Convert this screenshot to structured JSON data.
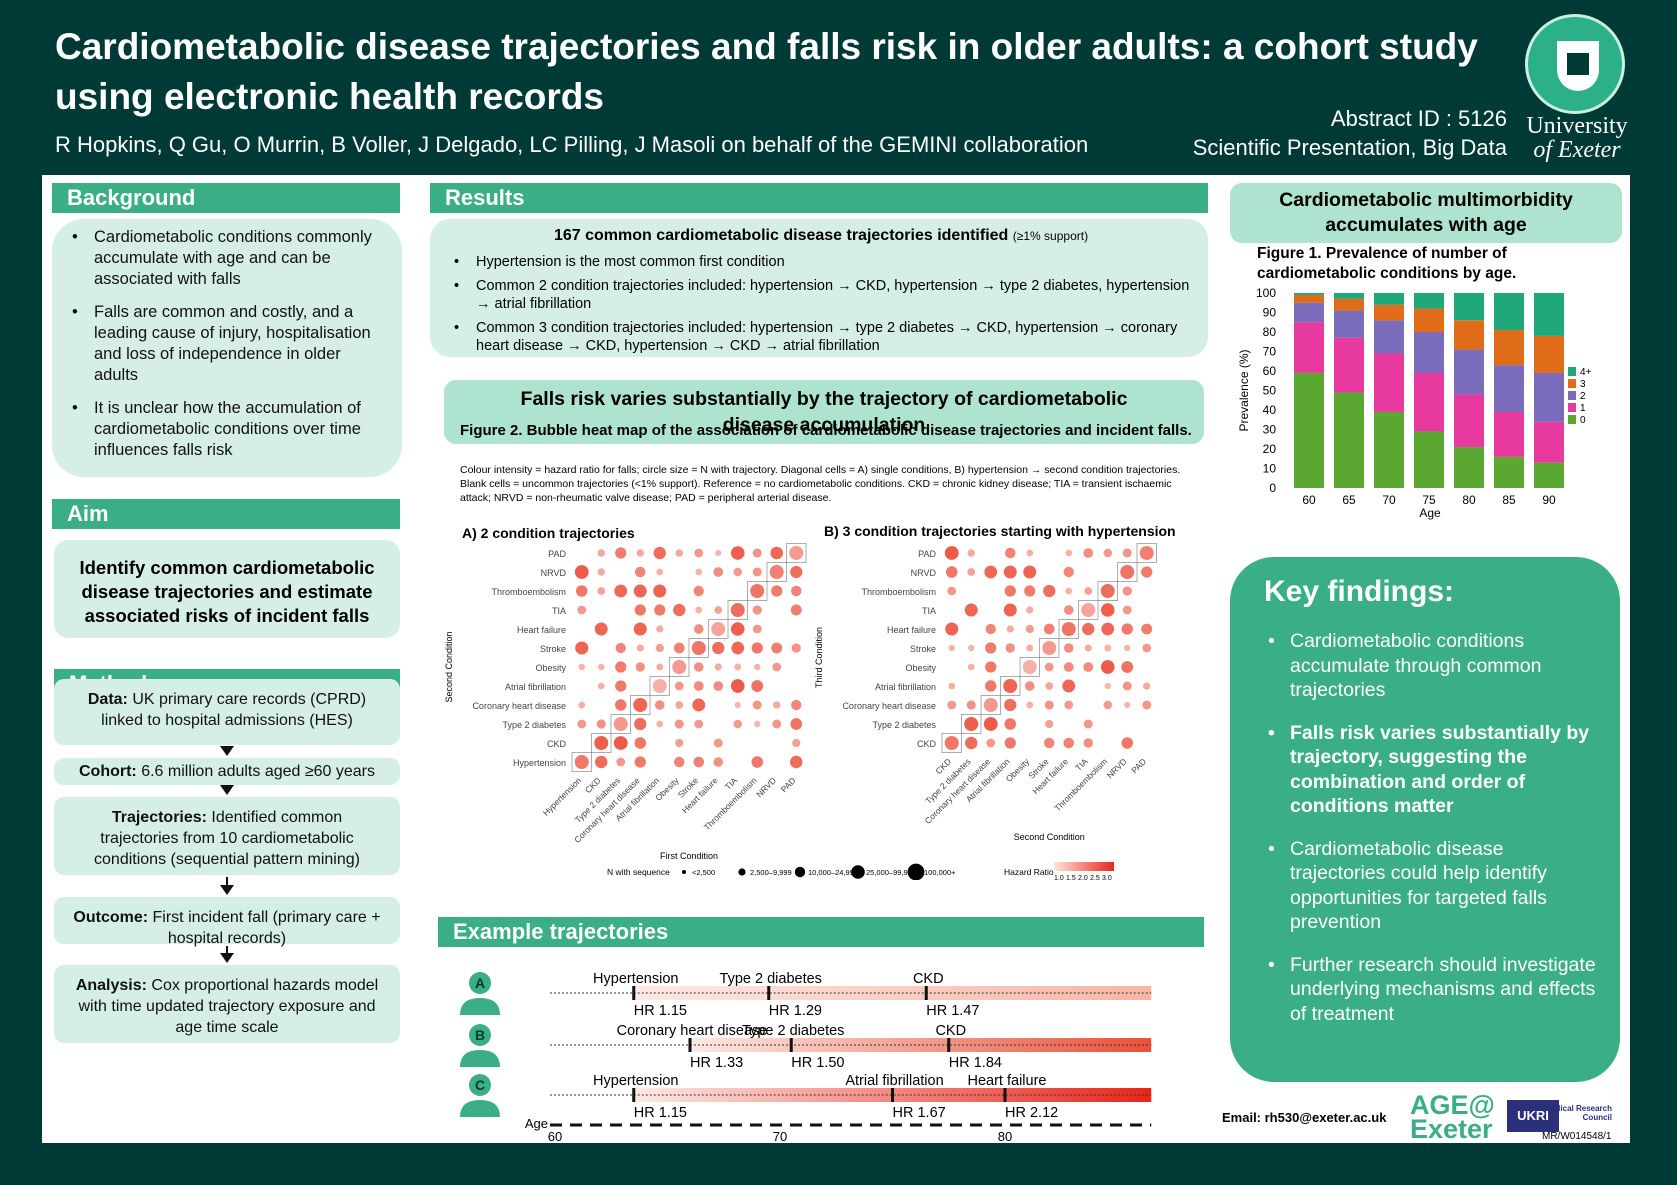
{
  "header": {
    "title": "Cardiometabolic disease trajectories and falls risk in older adults: a cohort study using electronic health records",
    "authors": "R Hopkins, Q Gu, O Murrin, B Voller, J Delgado, LC Pilling, J Masoli on behalf of the GEMINI collaboration",
    "abstract_id": "Abstract ID : 5126",
    "presentation": "Scientific Presentation, Big Data",
    "uni_line1": "University",
    "uni_line2": "of Exeter"
  },
  "background": {
    "title": "Background",
    "items": [
      "Cardiometabolic conditions commonly accumulate with age and can be associated with falls",
      "Falls are common and costly, and a leading cause of injury, hospitalisation and loss of independence in older adults",
      "It is unclear how the accumulation of cardiometabolic conditions over time influences falls risk"
    ]
  },
  "aim": {
    "title": "Aim",
    "text": "Identify common cardiometabolic disease trajectories and estimate associated risks of incident falls"
  },
  "methods": {
    "title": "Methods",
    "steps": [
      {
        "label": "Data:",
        "text": " UK primary care records (CPRD) linked to hospital admissions (HES)"
      },
      {
        "label": "Cohort:",
        "text": " 6.6 million adults aged ≥60 years"
      },
      {
        "label": "Trajectories:",
        "text": " Identified common trajectories from 10 cardiometabolic conditions (sequential pattern mining)"
      },
      {
        "label": "Outcome:",
        "text": " First incident fall (primary care + hospital records)"
      },
      {
        "label": "Analysis:",
        "text": " Cox proportional hazards model with time updated trajectory exposure and age time scale"
      }
    ]
  },
  "results": {
    "title": "Results",
    "headline": "167 common cardiometabolic disease trajectories identified",
    "support": "(≥1% support)",
    "items": [
      "Hypertension is the most common first condition",
      "Common 2 condition trajectories included: hypertension → CKD, hypertension → type 2 diabetes, hypertension → atrial fibrillation",
      "Common 3 condition trajectories included: hypertension → type 2 diabetes → CKD, hypertension → coronary heart disease → CKD, hypertension → CKD → atrial fibrillation"
    ]
  },
  "falls_callout": "Falls risk varies substantially by the trajectory of cardiometabolic disease accumulation",
  "fig2": {
    "caption": "Figure 2. Bubble heat map of the association of cardiometabolic disease trajectories and incident falls.",
    "note": "Colour intensity = hazard ratio for falls; circle size = N with trajectory. Diagonal cells = A) single conditions, B) hypertension → second condition trajectories. Blank cells = uncommon trajectories (<1% support). Reference = no cardiometabolic conditions. CKD = chronic kidney disease; TIA = transient ischaemic attack; NRVD = non-rheumatic valve disease; PAD = peripheral arterial disease.",
    "panelA": "A) 2 condition trajectories",
    "panelB": "B) 3 condition trajectories starting with hypertension",
    "conditions": [
      "Hypertension",
      "CKD",
      "Type 2 diabetes",
      "Coronary heart disease",
      "Atrial fibrillation",
      "Obesity",
      "Stroke",
      "Heart failure",
      "TIA",
      "Thromboembolism",
      "NRVD",
      "PAD"
    ],
    "a_xlabel": "First Condition",
    "a_ylabel": "Second Condition",
    "b_xlabel": "Second Condition",
    "b_ylabel": "Third Condition",
    "legend_n_title": "N with sequence",
    "legend_n": [
      "<2,500",
      "2,500–9,999",
      "10,000–24,999",
      "25,000–99,999",
      "100,000+"
    ],
    "legend_hr_title": "Hazard Ratio",
    "legend_hr_ticks": [
      "1.0",
      "1.5",
      "2.0",
      "2.5",
      "3.0"
    ]
  },
  "example": {
    "title": "Example trajectories",
    "age_label": "Age",
    "age_ticks": [
      "60",
      "70",
      "80"
    ],
    "rows": [
      {
        "id": "A",
        "events": [
          {
            "name": "Hypertension",
            "hr": "HR 1.15"
          },
          {
            "name": "Type 2 diabetes",
            "hr": "HR 1.29"
          },
          {
            "name": "CKD",
            "hr": "HR 1.47"
          }
        ]
      },
      {
        "id": "B",
        "events": [
          {
            "name": "Coronary heart disease",
            "hr": "HR 1.33"
          },
          {
            "name": "Type 2 diabetes",
            "hr": "HR 1.50"
          },
          {
            "name": "CKD",
            "hr": "HR 1.84"
          }
        ]
      },
      {
        "id": "C",
        "events": [
          {
            "name": "Hypertension",
            "hr": "HR 1.15"
          },
          {
            "name": "Atrial fibrillation",
            "hr": "HR 1.67"
          },
          {
            "name": "Heart failure",
            "hr": "HR 2.12"
          }
        ]
      }
    ]
  },
  "fig1_callout": "Cardiometabolic multimorbidity accumulates with age",
  "chart_data": {
    "type": "bar",
    "stacked": true,
    "title": "Figure 1. Prevalence of  number of cardiometabolic conditions by age.",
    "xlabel": "Age",
    "ylabel": "Prevalence (%)",
    "ylim": [
      0,
      100
    ],
    "yticks": [
      "0",
      "10",
      "20",
      "30",
      "40",
      "50",
      "60",
      "70",
      "80",
      "90",
      "100"
    ],
    "categories": [
      "60",
      "65",
      "70",
      "75",
      "80",
      "85",
      "90"
    ],
    "series": [
      {
        "name": "0",
        "color": "#5aa832",
        "values": [
          59,
          49,
          39,
          29,
          21,
          16,
          13
        ]
      },
      {
        "name": "1",
        "color": "#e8399e",
        "values": [
          26,
          28,
          30,
          30,
          27,
          23,
          21
        ]
      },
      {
        "name": "2",
        "color": "#7a6bbb",
        "values": [
          10,
          14,
          17,
          21,
          23,
          24,
          25
        ]
      },
      {
        "name": "3",
        "color": "#e06c1a",
        "values": [
          4,
          6,
          8,
          12,
          15,
          18,
          19
        ]
      },
      {
        "name": "4+",
        "color": "#20a87a",
        "values": [
          1,
          3,
          6,
          8,
          14,
          19,
          22
        ]
      }
    ],
    "legend_position": "right"
  },
  "key_findings": {
    "title": "Key findings:",
    "items": [
      {
        "text": "Cardiometabolic conditions accumulate through common trajectories",
        "bold": false
      },
      {
        "text": "Falls risk varies substantially by trajectory, suggesting the combination and order of conditions matter",
        "bold": true
      },
      {
        "text": "Cardiometabolic disease trajectories could help identify opportunities for targeted falls prevention",
        "bold": false
      },
      {
        "text": "Further research should investigate underlying mechanisms and effects of treatment",
        "bold": false
      }
    ]
  },
  "footer": {
    "email": "Email: rh530@exeter.ac.uk",
    "age_logo_1": "AGE@",
    "age_logo_2": "Exeter",
    "ukri": "UKRI",
    "mrc": "Medical Research Council",
    "code": "MR/W014548/1"
  }
}
